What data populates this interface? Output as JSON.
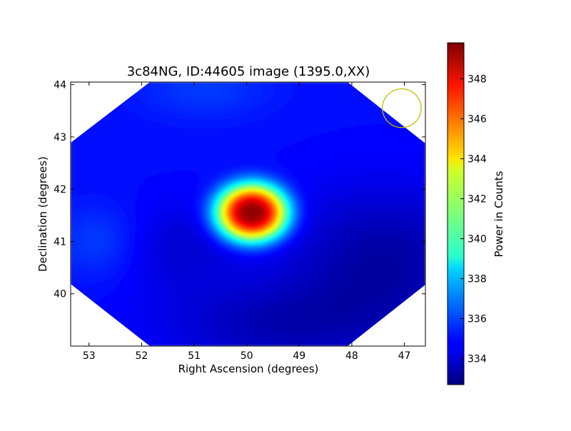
{
  "chart_data": {
    "type": "heatmap",
    "title": "3c84NG, ID:44605 image (1395.0,XX)",
    "xlabel": "Right Ascension (degrees)",
    "ylabel": "Declination (degrees)",
    "xlim": [
      53.35,
      46.6
    ],
    "ylim": [
      39.0,
      44.05
    ],
    "x_ticks": [
      {
        "value": 53,
        "label": "53"
      },
      {
        "value": 52,
        "label": "52"
      },
      {
        "value": 51,
        "label": "51"
      },
      {
        "value": 50,
        "label": "50"
      },
      {
        "value": 49,
        "label": "49"
      },
      {
        "value": 48,
        "label": "48"
      },
      {
        "value": 47,
        "label": "47"
      }
    ],
    "y_ticks": [
      {
        "value": 40,
        "label": "40"
      },
      {
        "value": 41,
        "label": "41"
      },
      {
        "value": 42,
        "label": "42"
      },
      {
        "value": 43,
        "label": "43"
      },
      {
        "value": 44,
        "label": "44"
      }
    ],
    "colorbar": {
      "label": "Power in Counts",
      "colormap": "jet",
      "range": [
        332.7,
        349.8
      ],
      "ticks": [
        {
          "value": 334,
          "label": "334"
        },
        {
          "value": 336,
          "label": "336"
        },
        {
          "value": 338,
          "label": "338"
        },
        {
          "value": 340,
          "label": "340"
        },
        {
          "value": 342,
          "label": "342"
        },
        {
          "value": 344,
          "label": "344"
        },
        {
          "value": 346,
          "label": "346"
        },
        {
          "value": 348,
          "label": "348"
        }
      ]
    },
    "background_level": 335.0,
    "peak": {
      "ra": 49.9,
      "dec": 41.55,
      "value": 349.8
    },
    "features": [
      {
        "ra": 49.9,
        "dec": 41.55,
        "amplitude": 14.8,
        "sigma_ra": 0.52,
        "sigma_dec": 0.42
      },
      {
        "ra": 52.8,
        "dec": 41.0,
        "amplitude": 0.9,
        "sigma_ra": 0.6,
        "sigma_dec": 0.5
      },
      {
        "ra": 50.8,
        "dec": 43.9,
        "amplitude": 0.8,
        "sigma_ra": 0.9,
        "sigma_dec": 0.4
      },
      {
        "ra": 51.3,
        "dec": 40.9,
        "amplitude": -0.9,
        "sigma_ra": 0.8,
        "sigma_dec": 0.6
      },
      {
        "ra": 47.4,
        "dec": 40.6,
        "amplitude": -1.7,
        "sigma_ra": 1.3,
        "sigma_dec": 1.0
      },
      {
        "ra": 49.5,
        "dec": 39.4,
        "amplitude": -1.3,
        "sigma_ra": 1.5,
        "sigma_dec": 0.6
      }
    ],
    "beam": {
      "ra": 47.05,
      "dec": 43.55,
      "radius_deg": 0.37,
      "color": "#bfbf00"
    },
    "grid": false,
    "colors": {
      "frame": "#000000",
      "outside_data": "#ffffff"
    }
  }
}
